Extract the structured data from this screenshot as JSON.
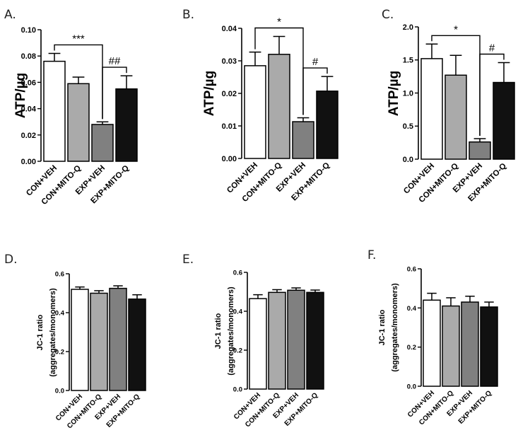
{
  "chart_data": [
    {
      "type": "bar",
      "panel_label": "A.",
      "ylabel": "ATP/µg",
      "categories": [
        "CON+VEH",
        "CON+MITO-Q",
        "EXP+VEH",
        "EXP+MITO-Q"
      ],
      "values": [
        0.076,
        0.059,
        0.028,
        0.055
      ],
      "errors": [
        0.006,
        0.005,
        0.002,
        0.01
      ],
      "ylim": [
        0,
        0.1
      ],
      "yticks": [
        "0.00",
        "0.02",
        "0.04",
        "0.06",
        "0.08",
        "0.10"
      ],
      "annotations": [
        {
          "text": "***",
          "from": 0,
          "to": 2
        },
        {
          "text": "##",
          "from": 2,
          "to": 3
        }
      ]
    },
    {
      "type": "bar",
      "panel_label": "B.",
      "ylabel": "ATP/µg",
      "categories": [
        "CON+VEH",
        "CON+MITO-Q",
        "EXP+VEH",
        "EXP+MITO-Q"
      ],
      "values": [
        0.0285,
        0.032,
        0.0113,
        0.0207
      ],
      "errors": [
        0.0042,
        0.0055,
        0.0012,
        0.0045
      ],
      "ylim": [
        0,
        0.04
      ],
      "yticks": [
        "0.00",
        "0.01",
        "0.02",
        "0.03",
        "0.04"
      ],
      "annotations": [
        {
          "text": "*",
          "from": 0,
          "to": 2
        },
        {
          "text": "#",
          "from": 2,
          "to": 3
        }
      ]
    },
    {
      "type": "bar",
      "panel_label": "C.",
      "ylabel": "ATP/µg",
      "categories": [
        "CON+VEH",
        "CON+MITO-Q",
        "EXP+VEH",
        "EXP+MITO-Q"
      ],
      "values": [
        1.52,
        1.27,
        0.26,
        1.16
      ],
      "errors": [
        0.22,
        0.3,
        0.05,
        0.3
      ],
      "ylim": [
        0,
        2.0
      ],
      "yticks": [
        "0.0",
        "0.5",
        "1.0",
        "1.5",
        "2.0"
      ],
      "annotations": [
        {
          "text": "*",
          "from": 0,
          "to": 2
        },
        {
          "text": "#",
          "from": 2,
          "to": 3
        }
      ]
    },
    {
      "type": "bar",
      "panel_label": "D.",
      "ylabel": "JC-1 ratio",
      "ylabel2": "(aggregates/monomers)",
      "categories": [
        "CON+VEH",
        "CON+MITO-Q",
        "EXP+VEH",
        "EXP+MITO-Q"
      ],
      "values": [
        0.52,
        0.5,
        0.525,
        0.47
      ],
      "errors": [
        0.012,
        0.013,
        0.013,
        0.022
      ],
      "ylim": [
        0,
        0.6
      ],
      "yticks": [
        "0.0",
        "0.2",
        "0.4",
        "0.6"
      ],
      "annotations": []
    },
    {
      "type": "bar",
      "panel_label": "E.",
      "ylabel": "JC-1 ratio",
      "ylabel2": "(aggregates/monomers)",
      "categories": [
        "CON+VEH",
        "CON+MITO-Q",
        "EXP+VEH",
        "EXP+MITO-Q"
      ],
      "values": [
        0.465,
        0.497,
        0.508,
        0.497
      ],
      "errors": [
        0.02,
        0.014,
        0.012,
        0.012
      ],
      "ylim": [
        0,
        0.6
      ],
      "yticks": [
        "0.0",
        "0.2",
        "0.4",
        "0.6"
      ],
      "annotations": []
    },
    {
      "type": "bar",
      "panel_label": "F.",
      "ylabel": "JC-1 ratio",
      "ylabel2": "(aggregates/monomers)",
      "categories": [
        "CON+VEH",
        "CON+MITO-Q",
        "EXP+VEH",
        "EXP+MITO-Q"
      ],
      "values": [
        0.44,
        0.41,
        0.43,
        0.405
      ],
      "errors": [
        0.035,
        0.042,
        0.03,
        0.025
      ],
      "ylim": [
        0,
        0.6
      ],
      "yticks": [
        "0.0",
        "0.2",
        "0.4",
        "0.6"
      ],
      "annotations": []
    }
  ],
  "bar_colors": [
    "#ffffff",
    "#aaaaaa",
    "#808080",
    "#111111"
  ]
}
